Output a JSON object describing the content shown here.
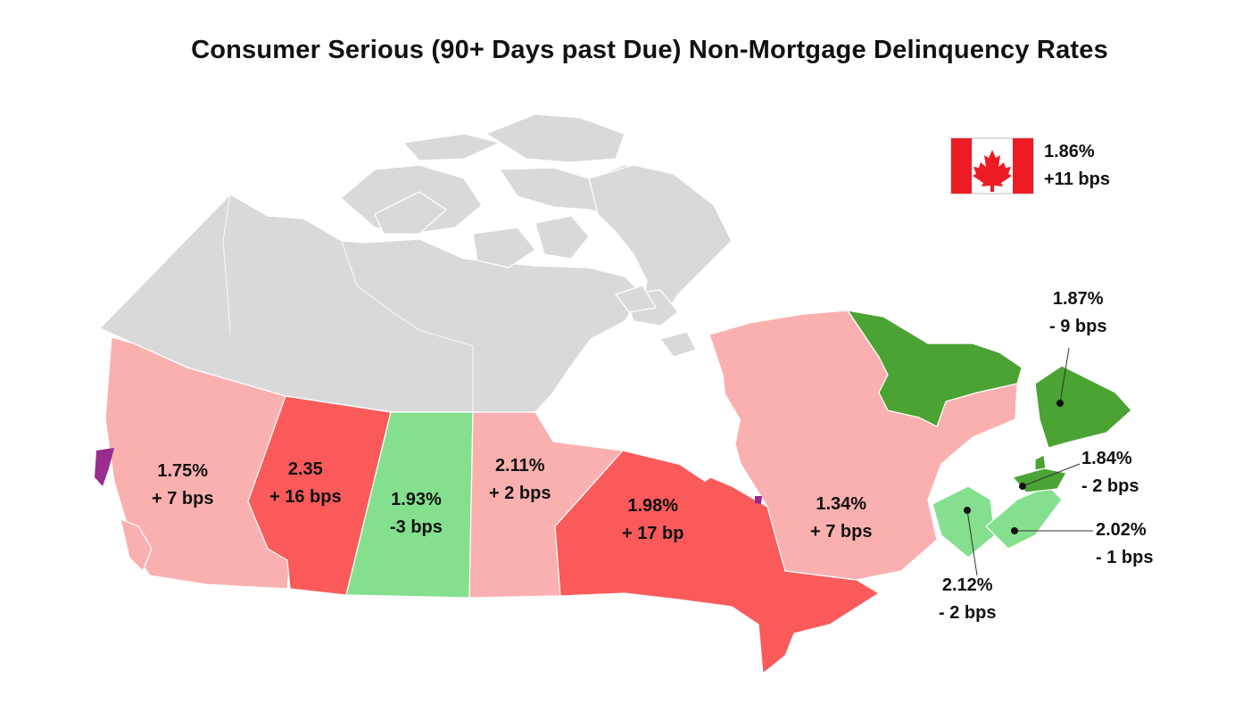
{
  "title": "Consumer Serious (90+ Days past Due) Non-Mortgage Delinquency Rates",
  "colors": {
    "inactive_land": "#d9d9d9",
    "increase_light": "#fbb0b0",
    "increase_strong": "#fa5a5a",
    "decrease_light": "#84e08e",
    "decrease_strong": "#4aa332",
    "territory_purple": "#9a2b8f",
    "flag_red": "#ed1c24"
  },
  "national": {
    "rate": "1.86%",
    "change": "+11 bps",
    "flag_icon": "canada-flag-icon"
  },
  "regions": {
    "bc": {
      "rate": "1.75%",
      "change": "+ 7 bps"
    },
    "ab": {
      "rate": "2.35",
      "change": "+ 16 bps"
    },
    "sk": {
      "rate": "1.93%",
      "change": "-3 bps"
    },
    "mb": {
      "rate": "2.11%",
      "change": "+ 2 bps"
    },
    "on": {
      "rate": "1.98%",
      "change": "+ 17 bp"
    },
    "qc": {
      "rate": "1.34%",
      "change": "+ 7 bps"
    },
    "nl": {
      "rate": "1.87%",
      "change": "- 9 bps"
    },
    "pe": {
      "rate": "1.84%",
      "change": "- 2 bps"
    },
    "ns": {
      "rate": "2.02%",
      "change": "- 1 bps"
    },
    "nb": {
      "rate": "2.12%",
      "change": "- 2 bps"
    }
  }
}
